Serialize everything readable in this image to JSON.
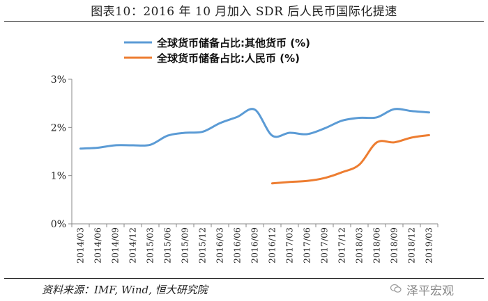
{
  "figure": {
    "title": "图表10：2016 年 10 月加入 SDR 后人民币国际化提速",
    "source": "资料来源：IMF, Wind, 恒大研究院",
    "watermark": "泽平宏观"
  },
  "chart_data": {
    "type": "line",
    "x": [
      "2014/03",
      "2014/06",
      "2014/09",
      "2014/12",
      "2015/03",
      "2015/06",
      "2015/09",
      "2015/12",
      "2016/03",
      "2016/06",
      "2016/09",
      "2016/12",
      "2017/03",
      "2017/06",
      "2017/09",
      "2017/12",
      "2018/03",
      "2018/06",
      "2018/09",
      "2018/12",
      "2019/03"
    ],
    "series": [
      {
        "name": "全球货币储备占比:其他货币 (%)",
        "color": "#5B9BD5",
        "values": [
          1.56,
          1.58,
          1.63,
          1.63,
          1.64,
          1.83,
          1.89,
          1.91,
          2.09,
          2.22,
          2.37,
          1.83,
          1.89,
          1.86,
          1.98,
          2.14,
          2.2,
          2.21,
          2.38,
          2.34,
          2.31
        ]
      },
      {
        "name": "全球货币储备占比:人民币 (%)",
        "color": "#ED7D31",
        "values": [
          null,
          null,
          null,
          null,
          null,
          null,
          null,
          null,
          null,
          null,
          null,
          0.84,
          0.87,
          0.89,
          0.95,
          1.07,
          1.23,
          1.69,
          1.69,
          1.79,
          1.84
        ]
      }
    ],
    "ylim": [
      0,
      3
    ],
    "yticks": [
      "0%",
      "1%",
      "2%",
      "3%"
    ],
    "grid": false,
    "legend": "top"
  }
}
